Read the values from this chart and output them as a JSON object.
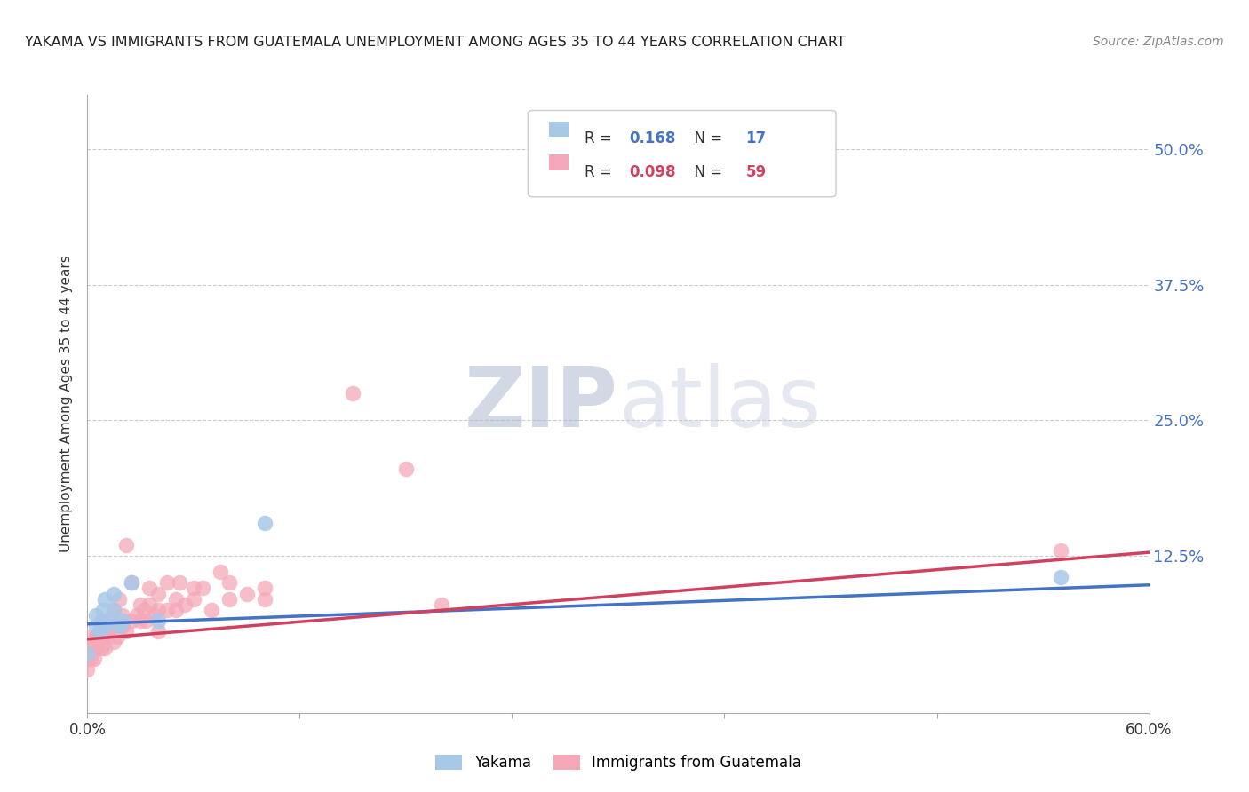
{
  "title": "YAKAMA VS IMMIGRANTS FROM GUATEMALA UNEMPLOYMENT AMONG AGES 35 TO 44 YEARS CORRELATION CHART",
  "source": "Source: ZipAtlas.com",
  "ylabel": "Unemployment Among Ages 35 to 44 years",
  "xlim": [
    0.0,
    0.6
  ],
  "ylim": [
    -0.02,
    0.55
  ],
  "xtick_pos": [
    0.0,
    0.12,
    0.24,
    0.36,
    0.48,
    0.6
  ],
  "xtick_labels": [
    "0.0%",
    "",
    "",
    "",
    "",
    "60.0%"
  ],
  "ytick_pos": [
    0.125,
    0.25,
    0.375,
    0.5
  ],
  "ytick_labels": [
    "12.5%",
    "25.0%",
    "37.5%",
    "50.0%"
  ],
  "yakama_color": "#a8c8e8",
  "guatemala_color": "#f4a8b8",
  "trendline_yakama_color": "#4472c4",
  "trendline_guatemala_color": "#d04060",
  "background_color": "#ffffff",
  "grid_color": "#cccccc",
  "watermark_zip_color": "#c8c8d8",
  "watermark_atlas_color": "#d0d0e0",
  "legend_box_color": "#f5f5f5",
  "legend_border_color": "#cccccc",
  "r1_val": "0.168",
  "n1_val": "17",
  "r2_val": "0.098",
  "n2_val": "59",
  "stat_color": "#4472c4",
  "stat_color2": "#d04060",
  "title_color": "#222222",
  "source_color": "#888888",
  "label_color": "#333333",
  "tick_color": "#4472c4",
  "yakama_x": [
    0.0,
    0.005,
    0.005,
    0.007,
    0.008,
    0.009,
    0.01,
    0.01,
    0.012,
    0.015,
    0.015,
    0.018,
    0.02,
    0.025,
    0.04,
    0.1,
    0.55
  ],
  "yakama_y": [
    0.035,
    0.06,
    0.07,
    0.055,
    0.065,
    0.075,
    0.06,
    0.085,
    0.065,
    0.075,
    0.09,
    0.06,
    0.065,
    0.1,
    0.065,
    0.155,
    0.105
  ],
  "guatemala_x": [
    0.0,
    0.0,
    0.0,
    0.0,
    0.002,
    0.003,
    0.004,
    0.005,
    0.006,
    0.007,
    0.008,
    0.008,
    0.009,
    0.01,
    0.01,
    0.012,
    0.013,
    0.015,
    0.015,
    0.016,
    0.017,
    0.018,
    0.02,
    0.02,
    0.022,
    0.022,
    0.025,
    0.025,
    0.028,
    0.03,
    0.03,
    0.032,
    0.033,
    0.035,
    0.035,
    0.038,
    0.04,
    0.04,
    0.04,
    0.045,
    0.045,
    0.05,
    0.05,
    0.052,
    0.055,
    0.06,
    0.06,
    0.065,
    0.07,
    0.075,
    0.08,
    0.08,
    0.09,
    0.1,
    0.1,
    0.15,
    0.18,
    0.2,
    0.55
  ],
  "guatemala_y": [
    0.02,
    0.03,
    0.04,
    0.05,
    0.03,
    0.04,
    0.03,
    0.05,
    0.04,
    0.05,
    0.04,
    0.06,
    0.05,
    0.04,
    0.055,
    0.05,
    0.065,
    0.045,
    0.075,
    0.06,
    0.05,
    0.085,
    0.06,
    0.07,
    0.055,
    0.135,
    0.065,
    0.1,
    0.07,
    0.065,
    0.08,
    0.075,
    0.065,
    0.08,
    0.095,
    0.07,
    0.055,
    0.075,
    0.09,
    0.075,
    0.1,
    0.075,
    0.085,
    0.1,
    0.08,
    0.085,
    0.095,
    0.095,
    0.075,
    0.11,
    0.085,
    0.1,
    0.09,
    0.085,
    0.095,
    0.275,
    0.205,
    0.08,
    0.13
  ],
  "trendline_x": [
    0.0,
    0.6
  ],
  "yakama_trend_y": [
    0.062,
    0.098
  ],
  "guatemala_trend_y": [
    0.048,
    0.128
  ]
}
